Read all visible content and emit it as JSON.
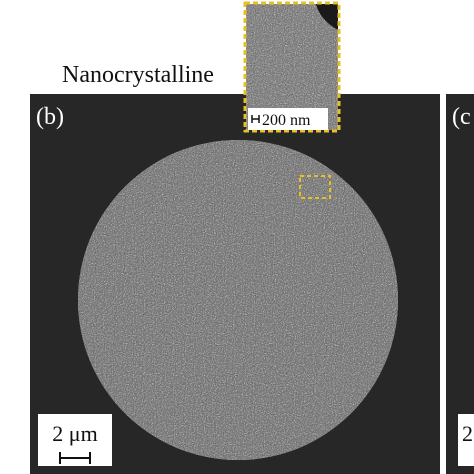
{
  "title": "Nanocrystalline",
  "panels": [
    {
      "label": "(b)",
      "scale_bar": "2 μm"
    },
    {
      "label": "(c",
      "scale_bar": "2"
    }
  ],
  "inset": {
    "scale_bar": "200 nm"
  }
}
